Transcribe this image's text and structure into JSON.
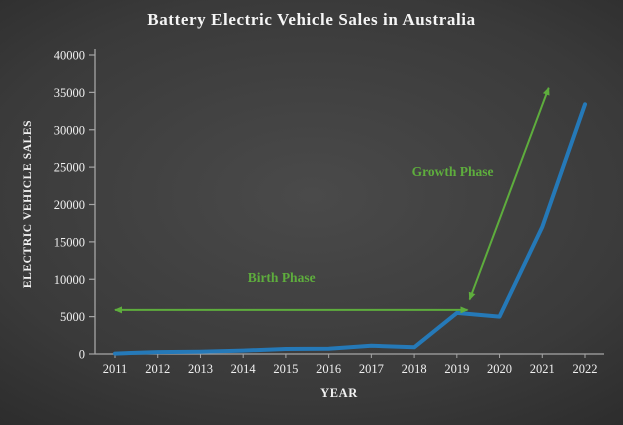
{
  "chart_data": {
    "type": "line",
    "title": "Battery Electric Vehicle Sales in Australia",
    "xlabel": "YEAR",
    "ylabel": "ELECTRIC VEHICLE SALES",
    "categories": [
      "2011",
      "2012",
      "2013",
      "2014",
      "2015",
      "2016",
      "2017",
      "2018",
      "2019",
      "2020",
      "2021",
      "2022"
    ],
    "series": [
      {
        "name": "Battery electric vehicle sales",
        "values": [
          50,
          250,
          300,
          450,
          670,
          700,
          1100,
          900,
          5500,
          5000,
          17000,
          33400
        ]
      }
    ],
    "ylim": [
      0,
      40000
    ],
    "ytick_step": 5000,
    "grid": false,
    "legend": "none",
    "colors": {
      "line": "#2579b8",
      "accent_green": "#5ead3d",
      "axis": "#a6a6a6",
      "text": "#f0f0f0"
    },
    "annotations": [
      {
        "name": "birth-phase",
        "label": "Birth Phase",
        "arrow": {
          "x1": 2011.0,
          "y1": 5900,
          "x2": 2019.25,
          "y2": 5900
        },
        "label_pos": {
          "x": 2014.9,
          "y": 9600
        }
      },
      {
        "name": "growth-phase",
        "label": "Growth Phase",
        "arrow": {
          "x1": 2019.3,
          "y1": 7300,
          "x2": 2021.15,
          "y2": 35600
        },
        "label_pos": {
          "x": 2018.9,
          "y": 23800
        }
      }
    ]
  }
}
